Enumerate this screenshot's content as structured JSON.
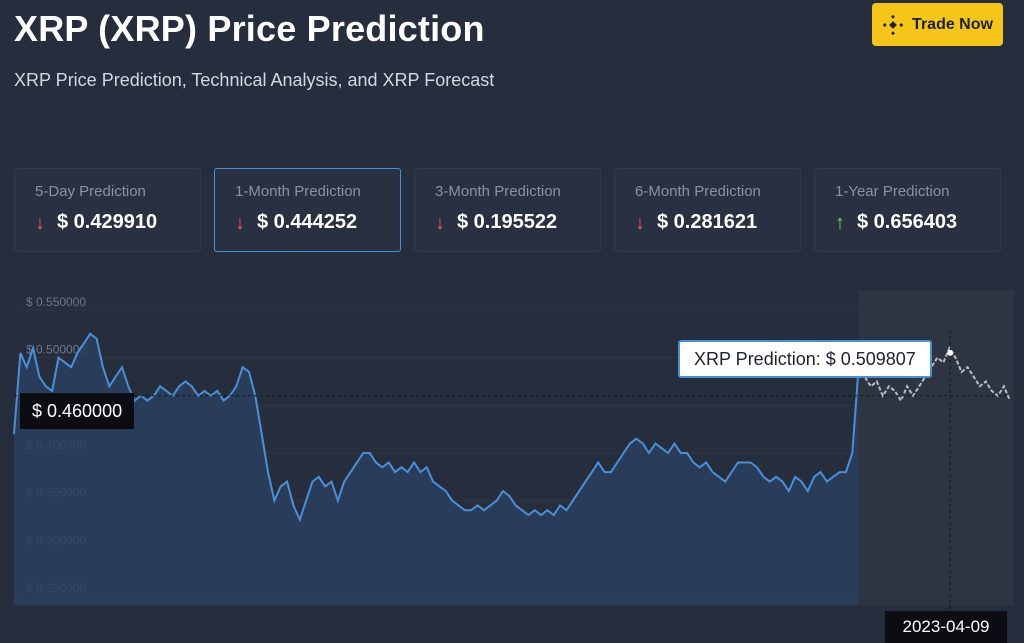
{
  "header": {
    "title": "XRP (XRP) Price Prediction",
    "subtitle": "XRP Price Prediction, Technical Analysis, and XRP Forecast",
    "trade_button": "Trade Now",
    "trade_icon": "binance-logo-icon"
  },
  "cards": [
    {
      "label": "5-Day Prediction",
      "value": "$ 0.429910",
      "direction": "down"
    },
    {
      "label": "1-Month Prediction",
      "value": "$ 0.444252",
      "direction": "down",
      "selected": true
    },
    {
      "label": "3-Month Prediction",
      "value": "$ 0.195522",
      "direction": "down"
    },
    {
      "label": "6-Month Prediction",
      "value": "$ 0.281621",
      "direction": "down"
    },
    {
      "label": "1-Year Prediction",
      "value": "$ 0.656403",
      "direction": "up"
    }
  ],
  "arrows": {
    "down": "↓",
    "up": "↑"
  },
  "colors": {
    "background": "#262d3d",
    "accent": "#4a90d9",
    "trade_button": "#f5c518",
    "down": "#e8536a",
    "up": "#7fd35f",
    "history_line": "#4a90d9",
    "forecast_line": "#b8bcc4"
  },
  "chart": {
    "price_label": "$ 0.460000",
    "tooltip": "XRP Prediction: $ 0.509807",
    "date_label": "2023-04-09"
  },
  "chart_data": {
    "type": "line",
    "title": "",
    "xlabel": "",
    "ylabel": "",
    "ylim": [
      0.24,
      0.56
    ],
    "y_ticks": [
      0.55,
      0.5,
      0.45,
      0.4,
      0.35,
      0.3,
      0.25
    ],
    "y_tick_labels": [
      "$ 0.550000",
      "$ 0.500000",
      "$ 0.450000",
      "$ 0.400000",
      "$ 0.350000",
      "$ 0.300000",
      "$ 0.250000"
    ],
    "grid": true,
    "series": [
      {
        "kind": "history",
        "values": [
          0.42,
          0.505,
          0.49,
          0.51,
          0.48,
          0.47,
          0.465,
          0.5,
          0.495,
          0.49,
          0.505,
          0.515,
          0.525,
          0.52,
          0.49,
          0.47,
          0.48,
          0.49,
          0.47,
          0.455,
          0.46,
          0.455,
          0.46,
          0.47,
          0.465,
          0.46,
          0.47,
          0.475,
          0.47,
          0.46,
          0.465,
          0.46,
          0.465,
          0.455,
          0.46,
          0.47,
          0.49,
          0.485,
          0.46,
          0.42,
          0.38,
          0.35,
          0.365,
          0.37,
          0.345,
          0.33,
          0.35,
          0.37,
          0.375,
          0.365,
          0.37,
          0.35,
          0.37,
          0.38,
          0.39,
          0.4,
          0.4,
          0.39,
          0.385,
          0.39,
          0.38,
          0.385,
          0.38,
          0.39,
          0.38,
          0.385,
          0.37,
          0.365,
          0.36,
          0.35,
          0.345,
          0.34,
          0.34,
          0.345,
          0.34,
          0.345,
          0.35,
          0.36,
          0.355,
          0.345,
          0.34,
          0.335,
          0.34,
          0.335,
          0.34,
          0.335,
          0.345,
          0.34,
          0.35,
          0.36,
          0.37,
          0.38,
          0.39,
          0.38,
          0.38,
          0.39,
          0.4,
          0.41,
          0.415,
          0.41,
          0.4,
          0.41,
          0.405,
          0.4,
          0.41,
          0.4,
          0.4,
          0.39,
          0.385,
          0.39,
          0.38,
          0.375,
          0.37,
          0.38,
          0.39,
          0.39,
          0.39,
          0.385,
          0.375,
          0.37,
          0.375,
          0.37,
          0.36,
          0.375,
          0.37,
          0.36,
          0.375,
          0.38,
          0.37,
          0.375,
          0.38,
          0.38,
          0.4,
          0.49
        ],
        "x_range": [
          0,
          0.848
        ]
      },
      {
        "kind": "forecast",
        "values": [
          0.49,
          0.48,
          0.47,
          0.475,
          0.46,
          0.47,
          0.465,
          0.455,
          0.47,
          0.46,
          0.47,
          0.48,
          0.49,
          0.5,
          0.495,
          0.51,
          0.5,
          0.485,
          0.49,
          0.48,
          0.47,
          0.475,
          0.465,
          0.46,
          0.47,
          0.455
        ],
        "x_range": [
          0.848,
          1.0
        ]
      }
    ],
    "highlight_value": 0.46,
    "highlight_x": 0.94
  }
}
